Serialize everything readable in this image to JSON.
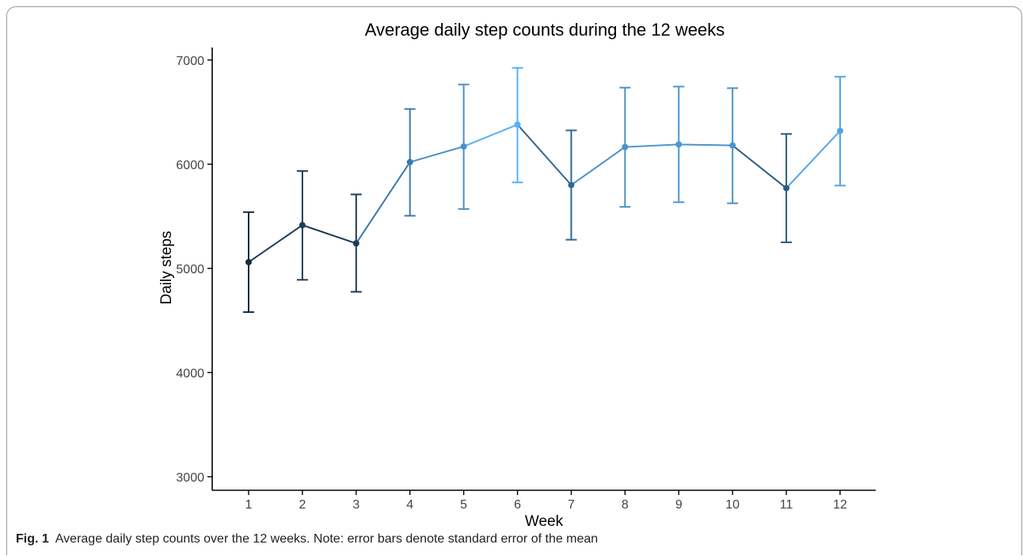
{
  "chart_data": {
    "type": "line",
    "title": "Average daily step counts during the 12 weeks",
    "xlabel": "Week",
    "ylabel": "Daily steps",
    "categories": [
      "1",
      "2",
      "3",
      "4",
      "5",
      "6",
      "7",
      "8",
      "9",
      "10",
      "11",
      "12"
    ],
    "series": [
      {
        "values": [
          5060,
          5415,
          5240,
          6020,
          6170,
          6380,
          5800,
          6165,
          6190,
          6180,
          5770,
          6320
        ],
        "lower": [
          4580,
          4890,
          4775,
          5505,
          5570,
          5825,
          5275,
          5590,
          5635,
          5625,
          5250,
          5795
        ],
        "upper": [
          5540,
          5935,
          5710,
          6530,
          6765,
          6925,
          6325,
          6735,
          6745,
          6730,
          6290,
          6840
        ]
      }
    ],
    "point_colors": [
      "#132b43",
      "#1e3d5c",
      "#1d3b58",
      "#3a79ae",
      "#4a8fcb",
      "#56b1f7",
      "#306894",
      "#4892c9",
      "#4c97d2",
      "#4a93cc",
      "#2a5b84",
      "#51a4e6"
    ],
    "ylim": [
      2870,
      7120
    ],
    "yticks": [
      3000,
      4000,
      5000,
      6000,
      7000
    ],
    "grid": false,
    "legend": "none"
  },
  "caption": {
    "label": "Fig. 1",
    "text": "Average daily step counts over the 12 weeks. Note: error bars denote standard error of the mean"
  }
}
